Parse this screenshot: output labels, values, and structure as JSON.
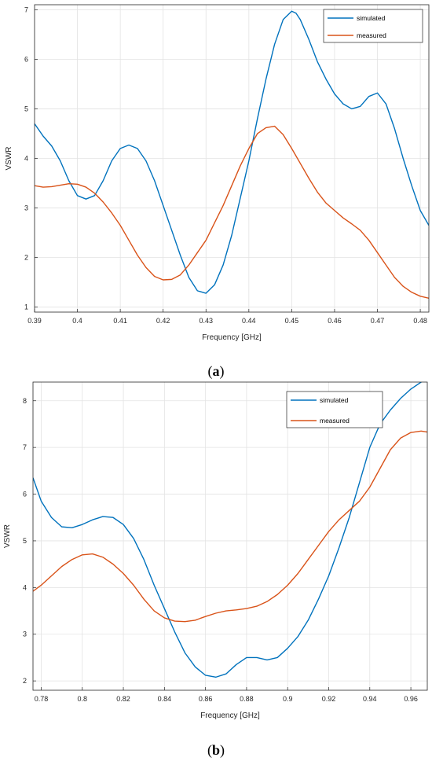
{
  "chart_data": [
    {
      "type": "line",
      "caption_letter": "a",
      "xlabel": "Frequency [GHz]",
      "ylabel": "VSWR",
      "xlim": [
        0.39,
        0.482
      ],
      "ylim": [
        0.9,
        7.1
      ],
      "xticks": [
        "0.39",
        "0.4",
        "0.41",
        "0.42",
        "0.43",
        "0.44",
        "0.45",
        "0.46",
        "0.47",
        "0.48"
      ],
      "yticks": [
        "1",
        "2",
        "3",
        "4",
        "5",
        "6",
        "7"
      ],
      "grid": true,
      "legend": "top-right",
      "series": [
        {
          "name": "simulated",
          "color": "#0072BD",
          "x": [
            0.39,
            0.392,
            0.394,
            0.396,
            0.398,
            0.4,
            0.402,
            0.404,
            0.406,
            0.408,
            0.41,
            0.412,
            0.414,
            0.416,
            0.418,
            0.42,
            0.422,
            0.424,
            0.426,
            0.428,
            0.43,
            0.432,
            0.434,
            0.436,
            0.438,
            0.44,
            0.442,
            0.444,
            0.446,
            0.448,
            0.45,
            0.451,
            0.452,
            0.454,
            0.456,
            0.458,
            0.46,
            0.462,
            0.464,
            0.466,
            0.468,
            0.47,
            0.472,
            0.474,
            0.476,
            0.478,
            0.48,
            0.482
          ],
          "y": [
            4.7,
            4.45,
            4.25,
            3.95,
            3.55,
            3.25,
            3.18,
            3.25,
            3.55,
            3.95,
            4.2,
            4.27,
            4.2,
            3.95,
            3.55,
            3.05,
            2.55,
            2.05,
            1.6,
            1.33,
            1.28,
            1.45,
            1.85,
            2.45,
            3.2,
            3.95,
            4.8,
            5.6,
            6.3,
            6.8,
            6.97,
            6.93,
            6.8,
            6.4,
            5.95,
            5.6,
            5.3,
            5.1,
            5.0,
            5.05,
            5.25,
            5.32,
            5.1,
            4.6,
            4.0,
            3.45,
            2.95,
            2.65
          ]
        },
        {
          "name": "measured",
          "color": "#D95319",
          "x": [
            0.39,
            0.392,
            0.394,
            0.396,
            0.398,
            0.4,
            0.402,
            0.404,
            0.406,
            0.408,
            0.41,
            0.412,
            0.414,
            0.416,
            0.418,
            0.42,
            0.422,
            0.424,
            0.426,
            0.428,
            0.43,
            0.432,
            0.434,
            0.436,
            0.438,
            0.44,
            0.442,
            0.444,
            0.446,
            0.448,
            0.45,
            0.452,
            0.454,
            0.456,
            0.458,
            0.46,
            0.462,
            0.464,
            0.466,
            0.468,
            0.47,
            0.472,
            0.474,
            0.476,
            0.478,
            0.48,
            0.482
          ],
          "y": [
            3.45,
            3.42,
            3.43,
            3.46,
            3.49,
            3.48,
            3.42,
            3.3,
            3.12,
            2.9,
            2.65,
            2.35,
            2.05,
            1.8,
            1.62,
            1.55,
            1.56,
            1.65,
            1.85,
            2.1,
            2.35,
            2.7,
            3.05,
            3.45,
            3.85,
            4.2,
            4.5,
            4.62,
            4.65,
            4.48,
            4.2,
            3.9,
            3.6,
            3.32,
            3.1,
            2.95,
            2.8,
            2.68,
            2.55,
            2.35,
            2.1,
            1.85,
            1.6,
            1.42,
            1.3,
            1.22,
            1.18
          ]
        }
      ]
    },
    {
      "type": "line",
      "caption_letter": "b",
      "xlabel": "Frequency [GHz]",
      "ylabel": "VSWR",
      "xlim": [
        0.776,
        0.968
      ],
      "ylim": [
        1.8,
        8.4
      ],
      "xticks": [
        "0.78",
        "0.8",
        "0.82",
        "0.84",
        "0.86",
        "0.88",
        "0.9",
        "0.92",
        "0.94",
        "0.96"
      ],
      "yticks": [
        "2",
        "3",
        "4",
        "5",
        "6",
        "7",
        "8"
      ],
      "grid": true,
      "legend": "top-right",
      "series": [
        {
          "name": "simulated",
          "color": "#0072BD",
          "x": [
            0.776,
            0.78,
            0.785,
            0.79,
            0.795,
            0.8,
            0.805,
            0.81,
            0.815,
            0.82,
            0.825,
            0.83,
            0.835,
            0.84,
            0.845,
            0.85,
            0.855,
            0.86,
            0.865,
            0.87,
            0.875,
            0.88,
            0.885,
            0.89,
            0.895,
            0.9,
            0.905,
            0.91,
            0.915,
            0.92,
            0.925,
            0.93,
            0.935,
            0.94,
            0.945,
            0.95,
            0.955,
            0.96,
            0.965,
            0.968
          ],
          "y": [
            6.35,
            5.85,
            5.5,
            5.3,
            5.28,
            5.35,
            5.45,
            5.52,
            5.5,
            5.35,
            5.05,
            4.6,
            4.05,
            3.55,
            3.05,
            2.6,
            2.3,
            2.12,
            2.08,
            2.15,
            2.35,
            2.5,
            2.5,
            2.45,
            2.5,
            2.7,
            2.95,
            3.3,
            3.75,
            4.25,
            4.85,
            5.5,
            6.25,
            7.0,
            7.5,
            7.8,
            8.05,
            8.25,
            8.4,
            8.48
          ]
        },
        {
          "name": "measured",
          "color": "#D95319",
          "x": [
            0.776,
            0.78,
            0.785,
            0.79,
            0.795,
            0.8,
            0.805,
            0.81,
            0.815,
            0.82,
            0.825,
            0.83,
            0.835,
            0.84,
            0.845,
            0.85,
            0.855,
            0.86,
            0.865,
            0.87,
            0.875,
            0.88,
            0.885,
            0.89,
            0.895,
            0.9,
            0.905,
            0.91,
            0.915,
            0.92,
            0.925,
            0.93,
            0.935,
            0.94,
            0.945,
            0.95,
            0.955,
            0.96,
            0.965,
            0.968
          ],
          "y": [
            3.92,
            4.05,
            4.25,
            4.45,
            4.6,
            4.7,
            4.72,
            4.65,
            4.5,
            4.3,
            4.05,
            3.75,
            3.5,
            3.35,
            3.28,
            3.27,
            3.3,
            3.38,
            3.45,
            3.5,
            3.52,
            3.55,
            3.6,
            3.7,
            3.85,
            4.05,
            4.3,
            4.6,
            4.9,
            5.2,
            5.45,
            5.65,
            5.85,
            6.15,
            6.55,
            6.95,
            7.2,
            7.32,
            7.35,
            7.33
          ]
        }
      ]
    }
  ]
}
